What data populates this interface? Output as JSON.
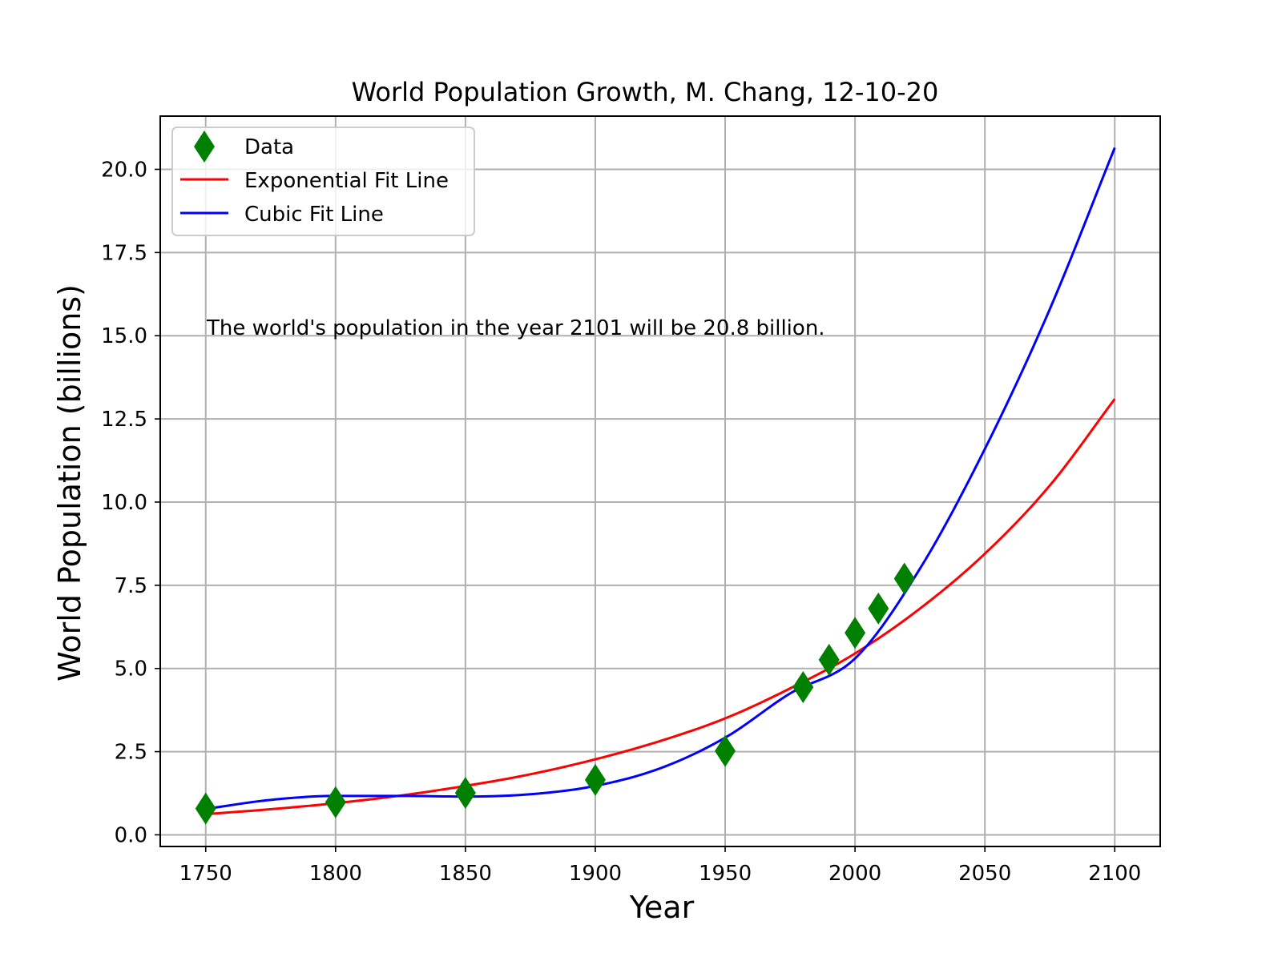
{
  "colors": {
    "data_marker": "#008000",
    "exponential_line": "#ff0000",
    "cubic_line": "#0000ff",
    "grid": "#b0b0b0"
  },
  "chart_data": {
    "type": "line",
    "title": "World Population Growth, M. Chang, 12-10-20",
    "xlabel": "Year",
    "ylabel": "World Population (billions)",
    "xlim": [
      1732.5,
      2117.5
    ],
    "ylim": [
      -0.35,
      21.6
    ],
    "grid": true,
    "legend_position": "top-left",
    "x_ticks": [
      1750,
      1800,
      1850,
      1900,
      1950,
      2000,
      2050,
      2100
    ],
    "x_tick_labels": [
      "1750",
      "1800",
      "1850",
      "1900",
      "1950",
      "2000",
      "2050",
      "2100"
    ],
    "y_ticks": [
      0,
      2.5,
      5,
      7.5,
      10,
      12.5,
      15,
      17.5,
      20
    ],
    "y_tick_labels": [
      "0.0",
      "2.5",
      "5.0",
      "7.5",
      "10.0",
      "12.5",
      "15.0",
      "17.5",
      "20.0"
    ],
    "annotation": "The world's population in the year 2101 will be 20.8 billion.",
    "legend": [
      "Data",
      "Exponential Fit Line",
      "Cubic Fit Line"
    ],
    "series": [
      {
        "name": "Data",
        "kind": "markers",
        "marker": "diamond",
        "x": [
          1750,
          1800,
          1850,
          1900,
          1950,
          1980,
          1990,
          2000,
          2009,
          2019
        ],
        "y": [
          0.79,
          0.98,
          1.26,
          1.65,
          2.52,
          4.44,
          5.26,
          6.07,
          6.8,
          7.7
        ]
      },
      {
        "name": "Exponential Fit Line",
        "kind": "line",
        "x": [
          1750,
          1775,
          1800,
          1825,
          1850,
          1875,
          1900,
          1925,
          1950,
          1975,
          2000,
          2025,
          2050,
          2075,
          2100
        ],
        "y": [
          0.62,
          0.77,
          0.95,
          1.18,
          1.47,
          1.82,
          2.27,
          2.82,
          3.5,
          4.4,
          5.45,
          6.8,
          8.45,
          10.5,
          13.1
        ]
      },
      {
        "name": "Cubic Fit Line",
        "kind": "line",
        "x": [
          1750,
          1775,
          1800,
          1825,
          1850,
          1875,
          1900,
          1925,
          1950,
          1975,
          2000,
          2025,
          2050,
          2075,
          2100
        ],
        "y": [
          0.78,
          1.05,
          1.17,
          1.17,
          1.15,
          1.22,
          1.47,
          2.0,
          2.92,
          4.25,
          5.3,
          8.0,
          11.6,
          15.8,
          20.65
        ]
      }
    ]
  }
}
